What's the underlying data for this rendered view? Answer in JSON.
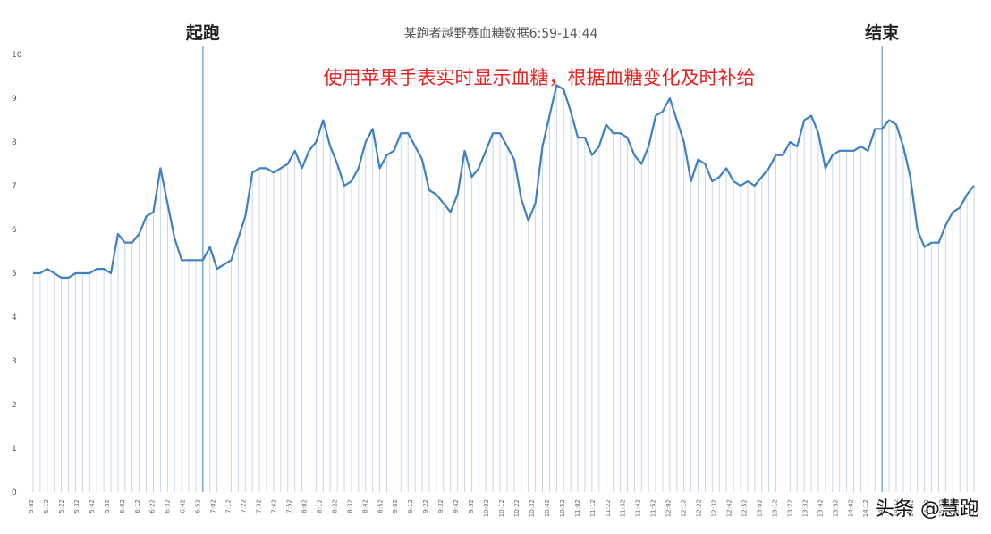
{
  "chart_data": {
    "type": "line",
    "title": "某跑者越野赛血糖数据6:59-14:44",
    "xlabel": "",
    "ylabel": "",
    "ylim": [
      0,
      10
    ],
    "y_ticks": [
      "0",
      "1",
      "2",
      "3",
      "4",
      "5",
      "6",
      "7",
      "8",
      "9",
      "10"
    ],
    "x_tick_labels": [
      "5:02",
      "5:12",
      "5:22",
      "5:32",
      "5:42",
      "5:52",
      "6:02",
      "6:12",
      "6:22",
      "6:32",
      "6:42",
      "6:52",
      "7:02",
      "7:12",
      "7:22",
      "7:32",
      "7:42",
      "7:52",
      "8:02",
      "8:12",
      "8:22",
      "8:32",
      "8:42",
      "8:52",
      "9:02",
      "9:12",
      "9:22",
      "9:32",
      "9:42",
      "9:52",
      "10:02",
      "10:12",
      "10:22",
      "10:32",
      "10:42",
      "10:52",
      "11:02",
      "11:12",
      "11:22",
      "11:32",
      "11:42",
      "11:52",
      "12:02",
      "12:12",
      "12:22",
      "12:32",
      "12:42",
      "12:52",
      "13:02",
      "13:12",
      "13:22",
      "13:32",
      "13:42",
      "13:52",
      "14:02",
      "14:12",
      "14:22",
      "14:32",
      "14:42",
      "14:52",
      "15:02",
      "15:12",
      "15:22"
    ],
    "values": [
      5.0,
      5.0,
      5.1,
      5.0,
      4.9,
      4.9,
      5.0,
      5.0,
      5.0,
      5.1,
      5.1,
      5.0,
      5.9,
      5.7,
      5.7,
      5.9,
      6.3,
      6.4,
      7.4,
      6.6,
      5.8,
      5.3,
      5.3,
      5.3,
      5.3,
      5.6,
      5.1,
      5.2,
      5.3,
      5.8,
      6.3,
      7.3,
      7.4,
      7.4,
      7.3,
      7.4,
      7.5,
      7.8,
      7.4,
      7.8,
      8.0,
      8.5,
      7.9,
      7.5,
      7.0,
      7.1,
      7.4,
      8.0,
      8.3,
      7.4,
      7.7,
      7.8,
      8.2,
      8.2,
      7.9,
      7.6,
      6.9,
      6.8,
      6.6,
      6.4,
      6.8,
      7.8,
      7.2,
      7.4,
      7.8,
      8.2,
      8.2,
      7.9,
      7.6,
      6.7,
      6.2,
      6.6,
      7.9,
      8.6,
      9.3,
      9.2,
      8.7,
      8.1,
      8.1,
      7.7,
      7.9,
      8.4,
      8.2,
      8.2,
      8.1,
      7.7,
      7.5,
      7.9,
      8.6,
      8.7,
      9.0,
      8.5,
      8.0,
      7.1,
      7.6,
      7.5,
      7.1,
      7.2,
      7.4,
      7.1,
      7.0,
      7.1,
      7.0,
      7.2,
      7.4,
      7.7,
      7.7,
      8.0,
      7.9,
      8.5,
      8.6,
      8.2,
      7.4,
      7.7,
      7.8,
      7.8,
      7.8,
      7.9,
      7.8,
      8.3,
      8.3,
      8.5,
      8.4,
      7.9,
      7.2,
      6.0,
      5.6,
      5.7,
      5.7,
      6.1,
      6.4,
      6.5,
      6.8,
      7.0
    ],
    "markers": [
      {
        "label": "起跑",
        "index": 24
      },
      {
        "label": "结束",
        "index": 120
      }
    ],
    "annotation": "使用苹果手表实时显示血糖，根据血糖变化及时补给",
    "line_color": "#3f7fc4",
    "marker_color": "#6f9fd0",
    "grid": false,
    "legend": "none"
  },
  "watermark": "头条 @慧跑"
}
